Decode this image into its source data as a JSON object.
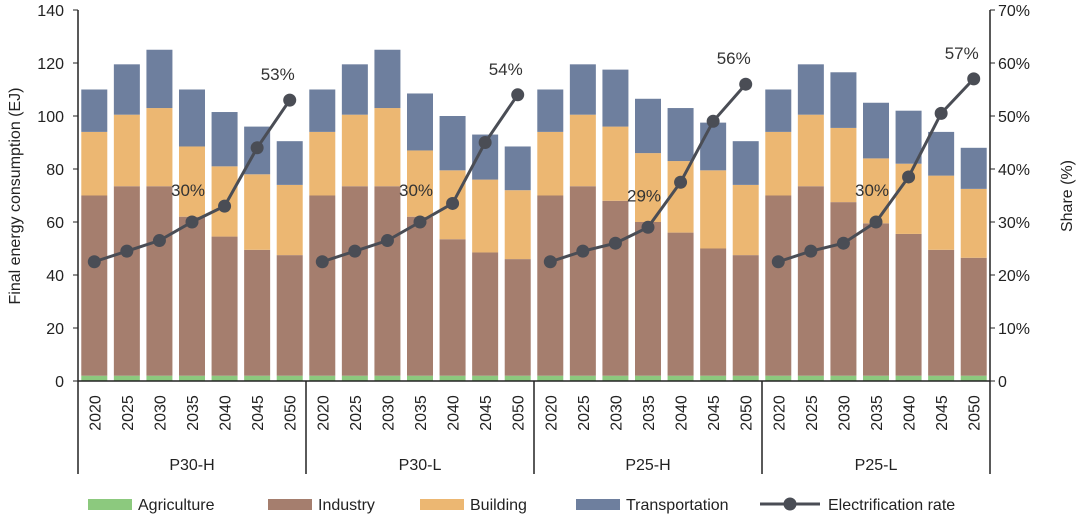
{
  "chart_data": {
    "type": "bar",
    "stacked": true,
    "ylabel": "Final energy consumption (EJ)",
    "ylabel_right": "Share (%)",
    "ylim": [
      0,
      140
    ],
    "yticks": [
      "0",
      "20",
      "40",
      "60",
      "80",
      "100",
      "120",
      "140"
    ],
    "ylim_right": [
      0,
      70
    ],
    "yticks_right": [
      "0",
      "10%",
      "20%",
      "30%",
      "40%",
      "50%",
      "60%",
      "70%"
    ],
    "years": [
      "2020",
      "2025",
      "2030",
      "2035",
      "2040",
      "2045",
      "2050"
    ],
    "groups": [
      "P30-H",
      "P30-L",
      "P25-H",
      "P25-L"
    ],
    "colors": {
      "Agriculture": "#8cc97e",
      "Industry": "#a57e6e",
      "Building": "#ecb772",
      "Transportation": "#6e7f9e",
      "Electrification rate": "#4a4d55"
    },
    "series": [
      {
        "name": "Agriculture",
        "values": [
          [
            2,
            2,
            2,
            2,
            2,
            2,
            2
          ],
          [
            2,
            2,
            2,
            2,
            2,
            2,
            2
          ],
          [
            2,
            2,
            2,
            2,
            2,
            2,
            2
          ],
          [
            2,
            2,
            2,
            2,
            2,
            2,
            2
          ]
        ]
      },
      {
        "name": "Industry",
        "values": [
          [
            68,
            71.5,
            71.5,
            60,
            52.5,
            47.5,
            45.5
          ],
          [
            68,
            71.5,
            71.5,
            60,
            51.5,
            46.5,
            44
          ],
          [
            68,
            71.5,
            66,
            58,
            54,
            48,
            45.5
          ],
          [
            68,
            71.5,
            65.5,
            57.5,
            53.5,
            47.5,
            44.5
          ]
        ]
      },
      {
        "name": "Building",
        "values": [
          [
            24,
            27,
            29.5,
            26.5,
            26.5,
            28.5,
            26.5
          ],
          [
            24,
            27,
            29.5,
            25,
            26,
            27.5,
            26
          ],
          [
            24,
            27,
            28,
            26,
            27,
            29.5,
            26.5
          ],
          [
            24,
            27,
            28,
            24.5,
            26.5,
            28,
            26
          ]
        ]
      },
      {
        "name": "Transportation",
        "values": [
          [
            16,
            19,
            22,
            21.5,
            20.5,
            18,
            16.5
          ],
          [
            16,
            19,
            22,
            21.5,
            20.5,
            17,
            16.5
          ],
          [
            16,
            19,
            21.5,
            20.5,
            20,
            18,
            16.5
          ],
          [
            16,
            19,
            21,
            21,
            20,
            16.5,
            15.5
          ]
        ]
      },
      {
        "name": "Electrification rate",
        "axis": "right",
        "type": "line",
        "values": [
          [
            22.5,
            24.5,
            26.5,
            30,
            33,
            44,
            53
          ],
          [
            22.5,
            24.5,
            26.5,
            30,
            33.5,
            45,
            54
          ],
          [
            22.5,
            24.5,
            26,
            29,
            37.5,
            49,
            56
          ],
          [
            22.5,
            24.5,
            26,
            30,
            38.5,
            50.5,
            57
          ]
        ]
      }
    ],
    "annotations": [
      {
        "group": 0,
        "year": "2035",
        "text": "30%"
      },
      {
        "group": 0,
        "year": "2050",
        "text": "53%"
      },
      {
        "group": 1,
        "year": "2035",
        "text": "30%"
      },
      {
        "group": 1,
        "year": "2050",
        "text": "54%"
      },
      {
        "group": 2,
        "year": "2035",
        "text": "29%"
      },
      {
        "group": 2,
        "year": "2050",
        "text": "56%"
      },
      {
        "group": 3,
        "year": "2035",
        "text": "30%"
      },
      {
        "group": 3,
        "year": "2050",
        "text": "57%"
      }
    ],
    "legend": {
      "position": "bottom",
      "items": [
        "Agriculture",
        "Industry",
        "Building",
        "Transportation",
        "Electrification rate"
      ]
    },
    "grid": false
  }
}
